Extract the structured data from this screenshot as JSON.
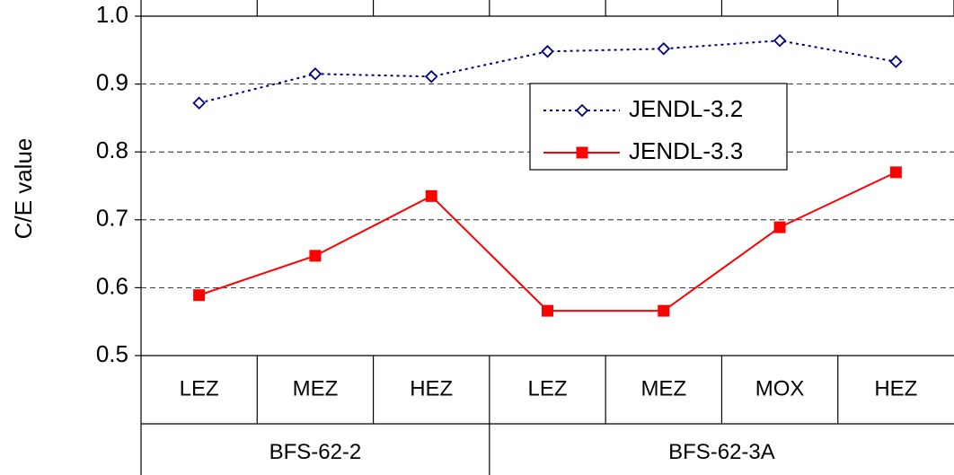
{
  "chart_data": {
    "type": "line",
    "y_label": "C/E value",
    "groups": [
      {
        "name": "BFS-62-2",
        "categories": [
          "LEZ",
          "MEZ",
          "HEZ"
        ]
      },
      {
        "name": "BFS-62-3A",
        "categories": [
          "LEZ",
          "MEZ",
          "MOX",
          "HEZ"
        ]
      }
    ],
    "series": [
      {
        "name": "JENDL-3.2",
        "color": "#000080",
        "dash": "dotted",
        "marker": "diamond",
        "values": [
          0.872,
          0.915,
          0.911,
          0.948,
          0.952,
          0.964,
          0.933
        ]
      },
      {
        "name": "JENDL-3.3",
        "color": "#ff0000",
        "dash": "solid",
        "marker": "square",
        "values": [
          0.589,
          0.647,
          0.735,
          0.566,
          0.566,
          0.689,
          0.77
        ]
      }
    ],
    "ylim": [
      0.5,
      1.0
    ],
    "yticks": [
      {
        "value": 0.5,
        "label": "0.5"
      },
      0.6,
      0.7,
      0.8,
      0.9,
      {
        "value": 1.0,
        "label": "1.0"
      }
    ],
    "grid": true
  }
}
